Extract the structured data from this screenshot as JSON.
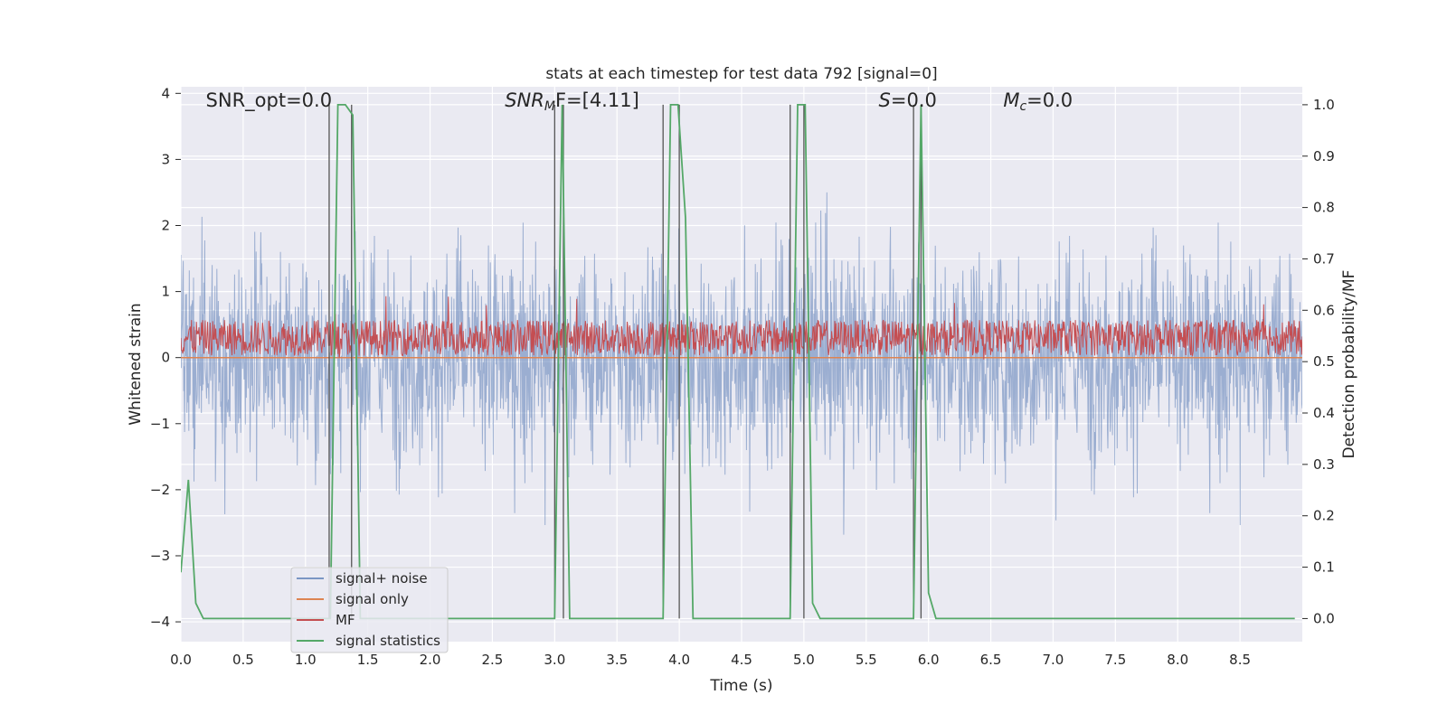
{
  "chart_data": {
    "type": "line",
    "title": "stats at each timestep for test data 792 [signal=0]",
    "xlabel": "Time (s)",
    "ylabel": "Whitened strain",
    "ylabel_right": "Detection probability/MF",
    "xlim": [
      0,
      9
    ],
    "ylim": [
      -4.3,
      4.1
    ],
    "ylim_right": [
      -0.045,
      1.035
    ],
    "x_ticks": [
      "0.0",
      "0.5",
      "1.0",
      "1.5",
      "2.0",
      "2.5",
      "3.0",
      "3.5",
      "4.0",
      "4.5",
      "5.0",
      "5.5",
      "6.0",
      "6.5",
      "7.0",
      "7.5",
      "8.0",
      "8.5"
    ],
    "y_ticks": [
      "−4",
      "−3",
      "−2",
      "−1",
      "0",
      "1",
      "2",
      "3",
      "4"
    ],
    "y_ticks_right": [
      "0.0",
      "0.1",
      "0.2",
      "0.3",
      "0.4",
      "0.5",
      "0.6",
      "0.7",
      "0.8",
      "0.9",
      "1.0"
    ],
    "grid": true,
    "legend_position": "lower-left",
    "annotations": {
      "snr_opt": {
        "label": "SNR_opt=0.0",
        "x": 0.2,
        "y": 3.8
      },
      "snr_mf": {
        "base": "SNR",
        "sub": "M",
        "rest": "F=[4.11]",
        "x": 2.6,
        "y": 3.8
      },
      "s_stat": {
        "base": "S",
        "rest": "=0.0",
        "x": 5.6,
        "y": 3.8
      },
      "mc": {
        "base": "M",
        "sub": "c",
        "rest": "=0.0",
        "x": 6.6,
        "y": 3.8
      }
    },
    "series": [
      {
        "name": "signal+ noise",
        "color": "#4c72b0",
        "alpha": 0.5,
        "axis": "left",
        "kind": "noise",
        "envelope": [
          -1.0,
          1.0
        ]
      },
      {
        "name": "signal only",
        "color": "#dd8452",
        "axis": "left",
        "kind": "flat",
        "values": [
          0.0
        ]
      },
      {
        "name": "MF",
        "color": "#c44e52",
        "axis": "left",
        "kind": "noise",
        "envelope": [
          0.0,
          0.6
        ]
      },
      {
        "name": "signal statistics",
        "color": "#55a868",
        "axis": "right",
        "kind": "line",
        "x": [
          0.0,
          0.06,
          0.12,
          0.18,
          0.24,
          0.3,
          1.2,
          1.26,
          1.32,
          1.38,
          1.44,
          3.0,
          3.06,
          3.12,
          3.18,
          3.87,
          3.93,
          3.99,
          4.05,
          4.11,
          4.89,
          4.95,
          5.01,
          5.07,
          5.13,
          5.88,
          5.94,
          6.0,
          6.06,
          8.94
        ],
        "y": [
          0.09,
          0.27,
          0.03,
          0.0,
          0.0,
          0.0,
          0.0,
          1.0,
          1.0,
          0.98,
          0.0,
          0.0,
          1.0,
          0.0,
          0.0,
          0.0,
          1.0,
          1.0,
          0.78,
          0.0,
          0.0,
          1.0,
          1.0,
          0.03,
          0.0,
          0.0,
          1.0,
          0.05,
          0.0,
          0.0
        ]
      }
    ],
    "vlines": [
      1.19,
      1.37,
      3.0,
      3.07,
      3.87,
      4.0,
      4.89,
      5.0,
      5.88,
      5.94
    ],
    "vline_color": "#555555"
  }
}
